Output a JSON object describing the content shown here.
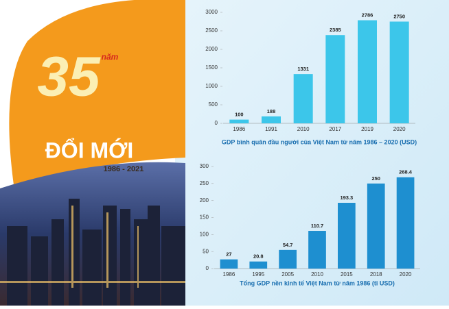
{
  "poster": {
    "number": "35",
    "unit": "năm",
    "title": "ĐỔI MỚI",
    "period": "1986 - 2021"
  },
  "chart_data": [
    {
      "type": "bar",
      "title": "GDP bình quân đầu người của Việt Nam từ năm 1986 – 2020 (USD)",
      "categories": [
        "1986",
        "1991",
        "2010",
        "2017",
        "2019",
        "2020"
      ],
      "values": [
        100,
        188,
        1331,
        2385,
        2786,
        2750
      ],
      "color": "#3cc6ea",
      "ylim": [
        0,
        3000
      ],
      "yticks": [
        0,
        500,
        1000,
        1500,
        2000,
        2500,
        3000
      ],
      "grid": false
    },
    {
      "type": "bar",
      "title": "Tổng GDP nền kinh tế Việt Nam từ năm 1986 (tỉ USD)",
      "categories": [
        "1986",
        "1995",
        "2005",
        "2010",
        "2015",
        "2018",
        "2020"
      ],
      "values": [
        27,
        20.8,
        54.7,
        110.7,
        193.3,
        250,
        268.4
      ],
      "color": "#1e8fd0",
      "ylim": [
        0,
        300
      ],
      "yticks": [
        0,
        50,
        100,
        150,
        200,
        250,
        300
      ],
      "grid": false
    }
  ]
}
